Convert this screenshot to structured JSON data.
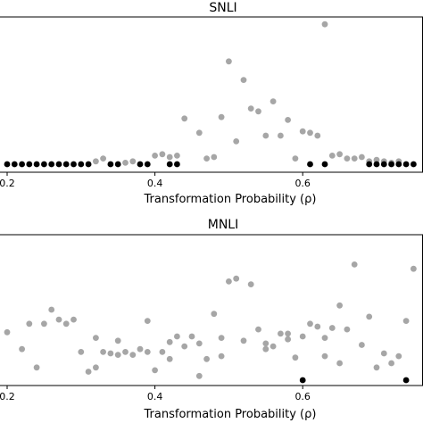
{
  "chart_data": [
    {
      "type": "scatter",
      "title": "SNLI",
      "xlabel": "Transformation Probability (ρ)",
      "ylabel": "",
      "xlim": [
        0.19,
        0.76
      ],
      "ylim": [
        0,
        1
      ],
      "xticks": [
        "0.2",
        "0.4",
        "0.6"
      ],
      "xtick_values": [
        0.2,
        0.4,
        0.6
      ],
      "grid": false,
      "series": [
        {
          "color": "#a6a6a6",
          "points": [
            [
              0.32,
              0.02
            ],
            [
              0.33,
              0.04
            ],
            [
              0.36,
              0.01
            ],
            [
              0.37,
              0.02
            ],
            [
              0.4,
              0.06
            ],
            [
              0.41,
              0.07
            ],
            [
              0.42,
              0.05
            ],
            [
              0.43,
              0.06
            ],
            [
              0.44,
              0.32
            ],
            [
              0.46,
              0.22
            ],
            [
              0.47,
              0.04
            ],
            [
              0.48,
              0.05
            ],
            [
              0.49,
              0.33
            ],
            [
              0.5,
              0.72
            ],
            [
              0.51,
              0.16
            ],
            [
              0.52,
              0.59
            ],
            [
              0.53,
              0.39
            ],
            [
              0.54,
              0.37
            ],
            [
              0.55,
              0.2
            ],
            [
              0.56,
              0.44
            ],
            [
              0.57,
              0.2
            ],
            [
              0.58,
              0.31
            ],
            [
              0.59,
              0.04
            ],
            [
              0.6,
              0.23
            ],
            [
              0.61,
              0.22
            ],
            [
              0.62,
              0.2
            ],
            [
              0.63,
              0.98
            ],
            [
              0.64,
              0.06
            ],
            [
              0.65,
              0.07
            ],
            [
              0.66,
              0.04
            ],
            [
              0.67,
              0.04
            ],
            [
              0.68,
              0.05
            ],
            [
              0.69,
              0.02
            ],
            [
              0.7,
              0.03
            ],
            [
              0.71,
              0.02
            ],
            [
              0.72,
              0.01
            ],
            [
              0.73,
              0.02
            ]
          ]
        },
        {
          "color": "#000000",
          "points": [
            [
              0.2,
              0.0
            ],
            [
              0.21,
              0.0
            ],
            [
              0.22,
              0.0
            ],
            [
              0.23,
              0.0
            ],
            [
              0.24,
              0.0
            ],
            [
              0.25,
              0.0
            ],
            [
              0.26,
              0.0
            ],
            [
              0.27,
              0.0
            ],
            [
              0.28,
              0.0
            ],
            [
              0.29,
              0.0
            ],
            [
              0.3,
              0.0
            ],
            [
              0.31,
              0.0
            ],
            [
              0.34,
              0.0
            ],
            [
              0.35,
              0.0
            ],
            [
              0.38,
              0.0
            ],
            [
              0.39,
              0.0
            ],
            [
              0.42,
              0.0
            ],
            [
              0.43,
              0.0
            ],
            [
              0.61,
              0.0
            ],
            [
              0.63,
              0.0
            ],
            [
              0.69,
              0.0
            ],
            [
              0.7,
              0.0
            ],
            [
              0.71,
              0.0
            ],
            [
              0.72,
              0.0
            ],
            [
              0.73,
              0.0
            ],
            [
              0.74,
              0.0
            ],
            [
              0.75,
              0.0
            ]
          ]
        }
      ]
    },
    {
      "type": "scatter",
      "title": "MNLI",
      "xlabel": "Transformation Probability (ρ)",
      "ylabel": "",
      "xlim": [
        0.19,
        0.76
      ],
      "ylim": [
        0,
        1
      ],
      "xticks": [
        "0.2",
        "0.4",
        "0.6"
      ],
      "xtick_values": [
        0.2,
        0.4,
        0.6
      ],
      "grid": false,
      "series": [
        {
          "color": "#a6a6a6",
          "points": [
            [
              0.2,
              0.34
            ],
            [
              0.22,
              0.22
            ],
            [
              0.23,
              0.4
            ],
            [
              0.24,
              0.09
            ],
            [
              0.25,
              0.4
            ],
            [
              0.26,
              0.5
            ],
            [
              0.27,
              0.43
            ],
            [
              0.28,
              0.4
            ],
            [
              0.29,
              0.43
            ],
            [
              0.3,
              0.2
            ],
            [
              0.31,
              0.06
            ],
            [
              0.32,
              0.09
            ],
            [
              0.32,
              0.3
            ],
            [
              0.33,
              0.2
            ],
            [
              0.34,
              0.19
            ],
            [
              0.35,
              0.28
            ],
            [
              0.35,
              0.18
            ],
            [
              0.36,
              0.2
            ],
            [
              0.37,
              0.18
            ],
            [
              0.38,
              0.22
            ],
            [
              0.39,
              0.2
            ],
            [
              0.39,
              0.42
            ],
            [
              0.4,
              0.07
            ],
            [
              0.41,
              0.2
            ],
            [
              0.42,
              0.27
            ],
            [
              0.42,
              0.15
            ],
            [
              0.43,
              0.31
            ],
            [
              0.44,
              0.24
            ],
            [
              0.45,
              0.31
            ],
            [
              0.46,
              0.03
            ],
            [
              0.46,
              0.26
            ],
            [
              0.47,
              0.15
            ],
            [
              0.48,
              0.47
            ],
            [
              0.49,
              0.3
            ],
            [
              0.49,
              0.17
            ],
            [
              0.5,
              0.7
            ],
            [
              0.51,
              0.72
            ],
            [
              0.52,
              0.28
            ],
            [
              0.53,
              0.68
            ],
            [
              0.54,
              0.36
            ],
            [
              0.55,
              0.26
            ],
            [
              0.55,
              0.22
            ],
            [
              0.56,
              0.24
            ],
            [
              0.57,
              0.33
            ],
            [
              0.58,
              0.33
            ],
            [
              0.58,
              0.29
            ],
            [
              0.59,
              0.16
            ],
            [
              0.6,
              0.31
            ],
            [
              0.61,
              0.4
            ],
            [
              0.62,
              0.38
            ],
            [
              0.63,
              0.3
            ],
            [
              0.63,
              0.17
            ],
            [
              0.64,
              0.37
            ],
            [
              0.65,
              0.12
            ],
            [
              0.65,
              0.53
            ],
            [
              0.66,
              0.36
            ],
            [
              0.67,
              0.82
            ],
            [
              0.68,
              0.25
            ],
            [
              0.69,
              0.45
            ],
            [
              0.7,
              0.09
            ],
            [
              0.71,
              0.19
            ],
            [
              0.72,
              0.12
            ],
            [
              0.73,
              0.17
            ],
            [
              0.74,
              0.42
            ],
            [
              0.75,
              0.79
            ]
          ]
        },
        {
          "color": "#000000",
          "points": [
            [
              0.6,
              0.0
            ],
            [
              0.74,
              0.0
            ]
          ]
        }
      ]
    }
  ]
}
